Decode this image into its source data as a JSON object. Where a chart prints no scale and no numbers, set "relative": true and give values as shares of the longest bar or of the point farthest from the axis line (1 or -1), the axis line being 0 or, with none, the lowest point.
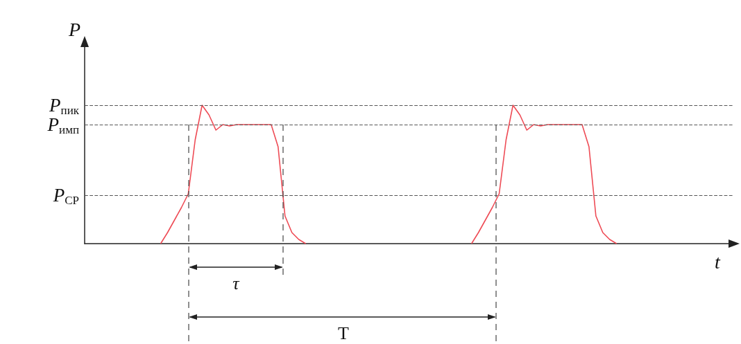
{
  "chart_data": {
    "type": "line",
    "relative": true,
    "xlabel": "t",
    "ylabel": "P",
    "categories": [
      null,
      null,
      null,
      null,
      null,
      null,
      null,
      null,
      null,
      null,
      null,
      null,
      null,
      null,
      null,
      null,
      null,
      null,
      null,
      null,
      null,
      null,
      null,
      null,
      null,
      null,
      null,
      null,
      null,
      null,
      null,
      null,
      null,
      null,
      null,
      null,
      null,
      null,
      null,
      null,
      null,
      null,
      null,
      null,
      null,
      null,
      null,
      null,
      null,
      null,
      null,
      null,
      null,
      null,
      null,
      null,
      null,
      null,
      null,
      null,
      null,
      null,
      null,
      null,
      null,
      null,
      null,
      null,
      null,
      null,
      null,
      null,
      null,
      null,
      null,
      null,
      null,
      null,
      null,
      null,
      null,
      null,
      null,
      null,
      null,
      null,
      null,
      null,
      null,
      null,
      null,
      null,
      null,
      null,
      null
    ],
    "series": [
      {
        "color": "#ee4b55",
        "values": [
          null,
          null,
          null,
          null,
          null,
          null,
          null,
          null,
          null,
          null,
          null,
          0,
          0.08,
          0.17,
          0.26,
          0.36,
          0.75,
          1,
          0.93,
          0.82,
          0.86,
          0.85,
          0.86,
          0.86,
          0.86,
          0.86,
          0.86,
          0.86,
          0.7,
          0.2,
          0.08,
          0.03,
          0,
          null,
          null,
          null,
          null,
          null,
          null,
          null,
          null,
          null,
          null,
          null,
          null,
          null,
          null,
          null,
          null,
          null,
          null,
          null,
          null,
          null,
          null,
          null,
          null,
          null,
          null,
          null,
          null,
          null,
          null,
          null,
          null,
          null,
          null,
          null,
          null,
          null,
          null,
          null,
          null,
          null,
          null,
          null,
          null,
          null,
          null,
          null,
          null,
          null,
          null,
          null,
          null,
          null,
          null,
          null,
          null,
          null,
          null,
          null,
          null,
          null,
          null
        ]
      },
      {
        "color": "#ee4b55",
        "values": [
          null,
          null,
          null,
          null,
          null,
          null,
          null,
          null,
          null,
          null,
          null,
          null,
          null,
          null,
          null,
          null,
          null,
          null,
          null,
          null,
          null,
          null,
          null,
          null,
          null,
          null,
          null,
          null,
          null,
          null,
          null,
          null,
          null,
          null,
          null,
          null,
          null,
          null,
          null,
          null,
          null,
          null,
          null,
          null,
          null,
          null,
          null,
          null,
          null,
          null,
          null,
          null,
          null,
          null,
          null,
          null,
          0,
          0.08,
          0.17,
          0.26,
          0.36,
          0.75,
          1,
          0.93,
          0.82,
          0.86,
          0.85,
          0.86,
          0.86,
          0.86,
          0.86,
          0.86,
          0.86,
          0.7,
          0.2,
          0.08,
          0.03,
          0,
          null,
          null,
          null,
          null,
          null,
          null,
          null,
          null,
          null,
          null,
          null,
          null,
          null,
          null,
          null,
          null,
          null
        ]
      }
    ],
    "ref_lines": [
      {
        "axis": "y",
        "value": 1,
        "label": "P$_{пик}$",
        "color": "#555555",
        "line_style": "dashed"
      },
      {
        "axis": "y",
        "value": 0.86,
        "label": "P$_{имп}$",
        "color": "#555555",
        "line_style": "dashed"
      },
      {
        "axis": "y",
        "value": 0.35,
        "label": "P$_{СР}$",
        "color": "#555555",
        "line_style": "dashed"
      }
    ],
    "annotations": [
      "τ",
      "T"
    ]
  }
}
